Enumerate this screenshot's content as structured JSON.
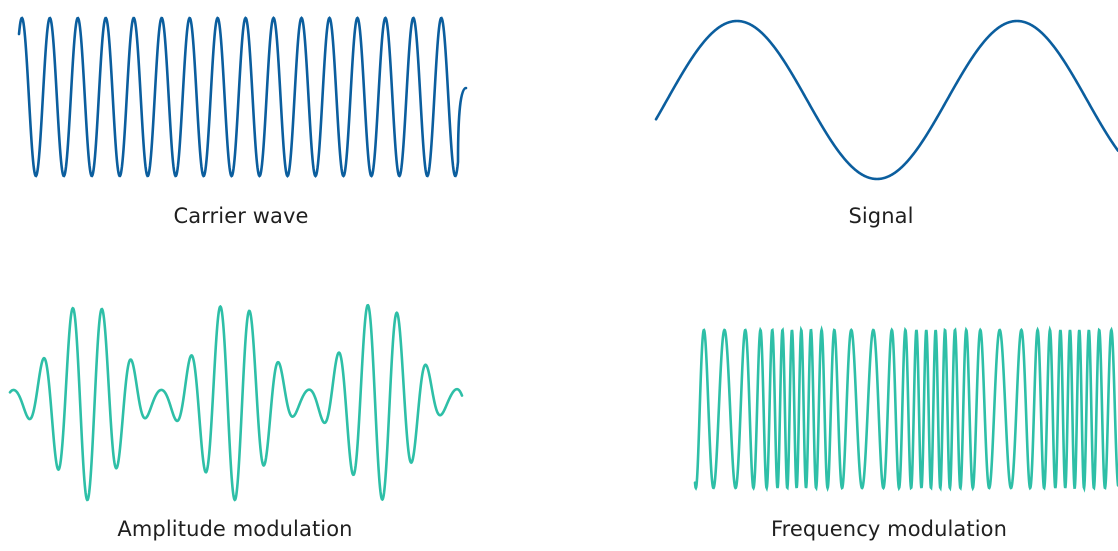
{
  "captions": {
    "carrier": "Carrier wave",
    "signal": "Signal",
    "am": "Amplitude modulation",
    "fm": "Frequency modulation"
  },
  "colors": {
    "carrier": "#0b5e9e",
    "signal": "#0b5e9e",
    "am": "#2ebfa7",
    "fm": "#2ebfa7"
  }
}
